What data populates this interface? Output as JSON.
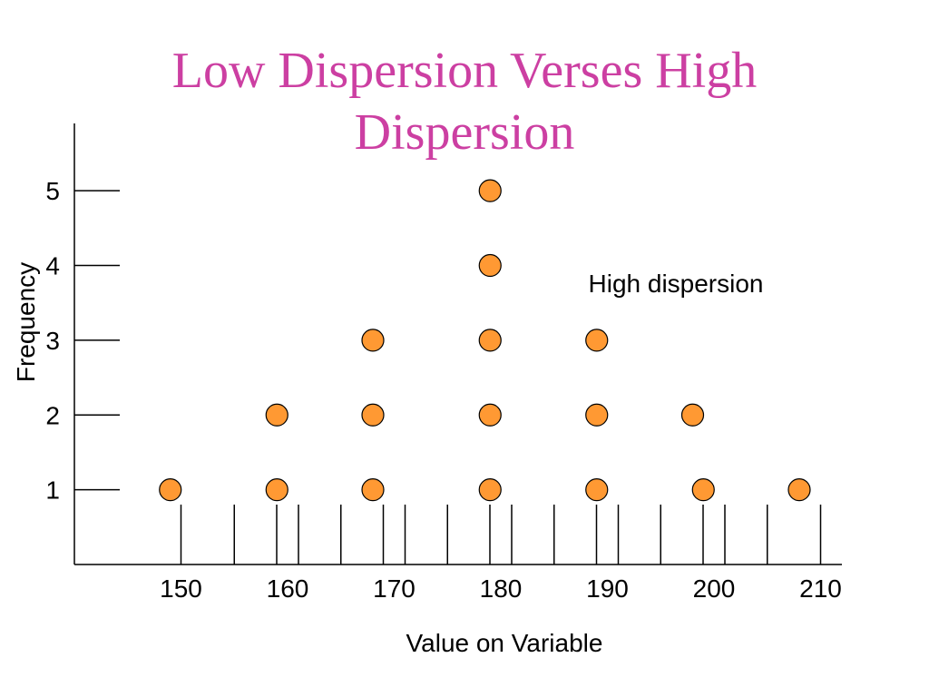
{
  "title": "Low Dispersion Verses High Dispersion",
  "colors": {
    "title": "#cc3fa2",
    "marker_fill": "#ff9933",
    "marker_stroke": "#000000",
    "axis": "#000000"
  },
  "chart_data": {
    "type": "scatter",
    "title": "Low Dispersion Verses High Dispersion",
    "xlabel": "Value on Variable",
    "ylabel": "Frequency",
    "x_ticks": [
      150,
      160,
      170,
      180,
      190,
      200,
      210
    ],
    "y_ticks": [
      1,
      2,
      3,
      4,
      5
    ],
    "xlim": [
      140,
      212
    ],
    "ylim": [
      0,
      5.9
    ],
    "grid": false,
    "legend": "none",
    "annotations": [
      {
        "text": "High dispersion"
      }
    ],
    "series": [
      {
        "marker": "circle",
        "points": [
          {
            "x": 149,
            "y": 1
          },
          {
            "x": 159,
            "y": 1
          },
          {
            "x": 159,
            "y": 2
          },
          {
            "x": 168,
            "y": 1
          },
          {
            "x": 168,
            "y": 2
          },
          {
            "x": 168,
            "y": 3
          },
          {
            "x": 179,
            "y": 1
          },
          {
            "x": 179,
            "y": 2
          },
          {
            "x": 179,
            "y": 3
          },
          {
            "x": 179,
            "y": 4
          },
          {
            "x": 179,
            "y": 5
          },
          {
            "x": 189,
            "y": 1
          },
          {
            "x": 189,
            "y": 2
          },
          {
            "x": 189,
            "y": 3
          },
          {
            "x": 198,
            "y": 2
          },
          {
            "x": 199,
            "y": 1
          },
          {
            "x": 208,
            "y": 1
          }
        ]
      }
    ]
  }
}
